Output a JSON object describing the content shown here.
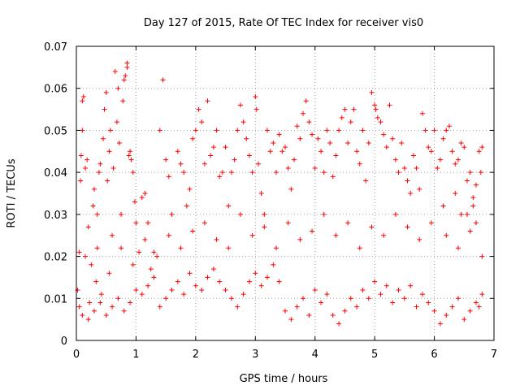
{
  "chart_data": {
    "type": "scatter",
    "title": "Day 127 of 2015, Rate Of TEC Index for receiver vis0",
    "xlabel": "GPS time / hours",
    "ylabel": "ROTI / TECUs",
    "xlim": [
      0,
      7
    ],
    "ylim": [
      0,
      0.07
    ],
    "xticks": [
      "0",
      "1",
      "2",
      "3",
      "4",
      "5",
      "6",
      "7"
    ],
    "yticks": [
      "0",
      "0.01",
      "0.02",
      "0.03",
      "0.04",
      "0.05",
      "0.06",
      "0.07"
    ],
    "grid": true,
    "marker": "+",
    "color": "#ff0000",
    "series": [
      {
        "name": "ROTI",
        "points": [
          [
            0.02,
            0.012
          ],
          [
            0.05,
            0.021
          ],
          [
            0.07,
            0.038
          ],
          [
            0.08,
            0.044
          ],
          [
            0.1,
            0.05
          ],
          [
            0.1,
            0.057
          ],
          [
            0.12,
            0.058
          ],
          [
            0.15,
            0.041
          ],
          [
            0.18,
            0.043
          ],
          [
            0.2,
            0.027
          ],
          [
            0.22,
            0.009
          ],
          [
            0.25,
            0.018
          ],
          [
            0.28,
            0.032
          ],
          [
            0.3,
            0.036
          ],
          [
            0.33,
            0.014
          ],
          [
            0.35,
            0.022
          ],
          [
            0.38,
            0.04
          ],
          [
            0.4,
            0.042
          ],
          [
            0.42,
            0.011
          ],
          [
            0.45,
            0.048
          ],
          [
            0.47,
            0.055
          ],
          [
            0.5,
            0.059
          ],
          [
            0.52,
            0.038
          ],
          [
            0.55,
            0.045
          ],
          [
            0.57,
            0.05
          ],
          [
            0.6,
            0.025
          ],
          [
            0.62,
            0.041
          ],
          [
            0.65,
            0.064
          ],
          [
            0.68,
            0.052
          ],
          [
            0.7,
            0.06
          ],
          [
            0.72,
            0.047
          ],
          [
            0.75,
            0.03
          ],
          [
            0.78,
            0.057
          ],
          [
            0.8,
            0.062
          ],
          [
            0.82,
            0.063
          ],
          [
            0.85,
            0.066
          ],
          [
            0.85,
            0.065
          ],
          [
            0.88,
            0.044
          ],
          [
            0.9,
            0.045
          ],
          [
            0.92,
            0.043
          ],
          [
            0.95,
            0.04
          ],
          [
            0.98,
            0.033
          ],
          [
            1.0,
            0.028
          ],
          [
            1.05,
            0.021
          ],
          [
            1.1,
            0.034
          ],
          [
            1.15,
            0.035
          ],
          [
            1.2,
            0.028
          ],
          [
            1.25,
            0.017
          ],
          [
            1.3,
            0.021
          ],
          [
            1.4,
            0.05
          ],
          [
            1.45,
            0.062
          ],
          [
            1.5,
            0.043
          ],
          [
            1.55,
            0.039
          ],
          [
            1.6,
            0.03
          ],
          [
            1.7,
            0.045
          ],
          [
            1.75,
            0.042
          ],
          [
            1.8,
            0.04
          ],
          [
            1.85,
            0.032
          ],
          [
            1.9,
            0.036
          ],
          [
            1.95,
            0.048
          ],
          [
            2.0,
            0.05
          ],
          [
            2.05,
            0.055
          ],
          [
            2.1,
            0.052
          ],
          [
            2.15,
            0.042
          ],
          [
            2.2,
            0.057
          ],
          [
            2.25,
            0.044
          ],
          [
            2.3,
            0.046
          ],
          [
            2.35,
            0.05
          ],
          [
            2.4,
            0.039
          ],
          [
            2.45,
            0.04
          ],
          [
            2.5,
            0.046
          ],
          [
            2.55,
            0.032
          ],
          [
            2.6,
            0.04
          ],
          [
            2.65,
            0.043
          ],
          [
            2.7,
            0.05
          ],
          [
            2.75,
            0.056
          ],
          [
            2.8,
            0.052
          ],
          [
            2.85,
            0.048
          ],
          [
            2.9,
            0.044
          ],
          [
            2.95,
            0.04
          ],
          [
            3.0,
            0.058
          ],
          [
            3.02,
            0.055
          ],
          [
            3.05,
            0.042
          ],
          [
            3.1,
            0.035
          ],
          [
            3.15,
            0.03
          ],
          [
            3.2,
            0.05
          ],
          [
            3.25,
            0.045
          ],
          [
            3.3,
            0.047
          ],
          [
            3.35,
            0.04
          ],
          [
            3.4,
            0.049
          ],
          [
            3.45,
            0.045
          ],
          [
            3.5,
            0.046
          ],
          [
            3.55,
            0.041
          ],
          [
            3.6,
            0.036
          ],
          [
            3.65,
            0.043
          ],
          [
            3.7,
            0.051
          ],
          [
            3.75,
            0.048
          ],
          [
            3.8,
            0.054
          ],
          [
            3.85,
            0.057
          ],
          [
            3.9,
            0.052
          ],
          [
            3.95,
            0.049
          ],
          [
            4.0,
            0.041
          ],
          [
            4.05,
            0.048
          ],
          [
            4.1,
            0.045
          ],
          [
            4.15,
            0.04
          ],
          [
            4.2,
            0.05
          ],
          [
            4.25,
            0.047
          ],
          [
            4.3,
            0.039
          ],
          [
            4.35,
            0.044
          ],
          [
            4.4,
            0.05
          ],
          [
            4.45,
            0.053
          ],
          [
            4.5,
            0.055
          ],
          [
            4.55,
            0.047
          ],
          [
            4.6,
            0.052
          ],
          [
            4.65,
            0.055
          ],
          [
            4.7,
            0.045
          ],
          [
            4.75,
            0.042
          ],
          [
            4.8,
            0.05
          ],
          [
            4.85,
            0.038
          ],
          [
            4.9,
            0.047
          ],
          [
            4.95,
            0.059
          ],
          [
            5.0,
            0.056
          ],
          [
            5.02,
            0.055
          ],
          [
            5.05,
            0.053
          ],
          [
            5.1,
            0.052
          ],
          [
            5.15,
            0.049
          ],
          [
            5.2,
            0.046
          ],
          [
            5.25,
            0.056
          ],
          [
            5.3,
            0.048
          ],
          [
            5.35,
            0.043
          ],
          [
            5.4,
            0.04
          ],
          [
            5.45,
            0.047
          ],
          [
            5.5,
            0.041
          ],
          [
            5.55,
            0.038
          ],
          [
            5.6,
            0.035
          ],
          [
            5.65,
            0.044
          ],
          [
            5.7,
            0.041
          ],
          [
            5.75,
            0.036
          ],
          [
            5.8,
            0.054
          ],
          [
            5.85,
            0.05
          ],
          [
            5.9,
            0.046
          ],
          [
            5.95,
            0.045
          ],
          [
            6.0,
            0.05
          ],
          [
            6.05,
            0.041
          ],
          [
            6.1,
            0.043
          ],
          [
            6.15,
            0.048
          ],
          [
            6.2,
            0.05
          ],
          [
            6.25,
            0.051
          ],
          [
            6.3,
            0.045
          ],
          [
            6.35,
            0.042
          ],
          [
            6.4,
            0.043
          ],
          [
            6.45,
            0.047
          ],
          [
            6.5,
            0.046
          ],
          [
            6.55,
            0.038
          ],
          [
            6.6,
            0.04
          ],
          [
            6.65,
            0.032
          ],
          [
            6.7,
            0.037
          ],
          [
            6.75,
            0.045
          ],
          [
            6.78,
            0.04
          ],
          [
            6.8,
            0.046
          ],
          [
            0.05,
            0.008
          ],
          [
            0.1,
            0.006
          ],
          [
            0.2,
            0.005
          ],
          [
            0.3,
            0.007
          ],
          [
            0.4,
            0.009
          ],
          [
            0.5,
            0.006
          ],
          [
            0.6,
            0.008
          ],
          [
            0.7,
            0.01
          ],
          [
            0.8,
            0.007
          ],
          [
            0.9,
            0.009
          ],
          [
            1.0,
            0.012
          ],
          [
            1.1,
            0.011
          ],
          [
            1.2,
            0.013
          ],
          [
            1.3,
            0.015
          ],
          [
            1.4,
            0.008
          ],
          [
            1.5,
            0.01
          ],
          [
            1.6,
            0.012
          ],
          [
            1.7,
            0.014
          ],
          [
            1.8,
            0.011
          ],
          [
            1.9,
            0.016
          ],
          [
            2.0,
            0.013
          ],
          [
            2.1,
            0.012
          ],
          [
            2.2,
            0.015
          ],
          [
            2.3,
            0.017
          ],
          [
            2.4,
            0.014
          ],
          [
            2.5,
            0.012
          ],
          [
            2.6,
            0.01
          ],
          [
            2.7,
            0.008
          ],
          [
            2.8,
            0.011
          ],
          [
            2.9,
            0.014
          ],
          [
            3.0,
            0.016
          ],
          [
            3.1,
            0.013
          ],
          [
            3.2,
            0.015
          ],
          [
            3.3,
            0.018
          ],
          [
            3.4,
            0.014
          ],
          [
            3.5,
            0.007
          ],
          [
            3.6,
            0.005
          ],
          [
            3.7,
            0.008
          ],
          [
            3.8,
            0.01
          ],
          [
            3.9,
            0.006
          ],
          [
            4.0,
            0.012
          ],
          [
            4.1,
            0.009
          ],
          [
            4.2,
            0.011
          ],
          [
            4.3,
            0.006
          ],
          [
            4.4,
            0.004
          ],
          [
            4.5,
            0.007
          ],
          [
            4.6,
            0.01
          ],
          [
            4.7,
            0.008
          ],
          [
            4.8,
            0.012
          ],
          [
            4.9,
            0.01
          ],
          [
            5.0,
            0.014
          ],
          [
            5.1,
            0.011
          ],
          [
            5.2,
            0.013
          ],
          [
            5.3,
            0.009
          ],
          [
            5.4,
            0.012
          ],
          [
            5.5,
            0.01
          ],
          [
            5.6,
            0.013
          ],
          [
            5.7,
            0.008
          ],
          [
            5.8,
            0.011
          ],
          [
            5.9,
            0.009
          ],
          [
            6.0,
            0.007
          ],
          [
            6.1,
            0.004
          ],
          [
            6.2,
            0.006
          ],
          [
            6.3,
            0.008
          ],
          [
            6.4,
            0.01
          ],
          [
            6.5,
            0.005
          ],
          [
            6.6,
            0.007
          ],
          [
            6.7,
            0.009
          ],
          [
            6.8,
            0.011
          ],
          [
            6.75,
            0.008
          ],
          [
            0.15,
            0.02
          ],
          [
            0.35,
            0.03
          ],
          [
            0.55,
            0.016
          ],
          [
            0.75,
            0.022
          ],
          [
            0.95,
            0.018
          ],
          [
            1.15,
            0.024
          ],
          [
            1.35,
            0.02
          ],
          [
            1.55,
            0.025
          ],
          [
            1.75,
            0.022
          ],
          [
            1.95,
            0.026
          ],
          [
            2.15,
            0.028
          ],
          [
            2.35,
            0.024
          ],
          [
            2.55,
            0.022
          ],
          [
            2.75,
            0.03
          ],
          [
            2.95,
            0.025
          ],
          [
            3.15,
            0.027
          ],
          [
            3.35,
            0.022
          ],
          [
            3.55,
            0.028
          ],
          [
            3.75,
            0.024
          ],
          [
            3.95,
            0.026
          ],
          [
            4.15,
            0.03
          ],
          [
            4.35,
            0.025
          ],
          [
            4.55,
            0.028
          ],
          [
            4.75,
            0.022
          ],
          [
            4.95,
            0.027
          ],
          [
            5.15,
            0.025
          ],
          [
            5.35,
            0.03
          ],
          [
            5.55,
            0.027
          ],
          [
            5.75,
            0.024
          ],
          [
            5.95,
            0.028
          ],
          [
            6.15,
            0.032
          ],
          [
            6.35,
            0.035
          ],
          [
            6.55,
            0.03
          ],
          [
            6.7,
            0.028
          ],
          [
            6.2,
            0.025
          ],
          [
            6.4,
            0.022
          ],
          [
            6.6,
            0.026
          ],
          [
            6.8,
            0.02
          ],
          [
            6.45,
            0.03
          ],
          [
            6.65,
            0.034
          ]
        ]
      }
    ]
  }
}
